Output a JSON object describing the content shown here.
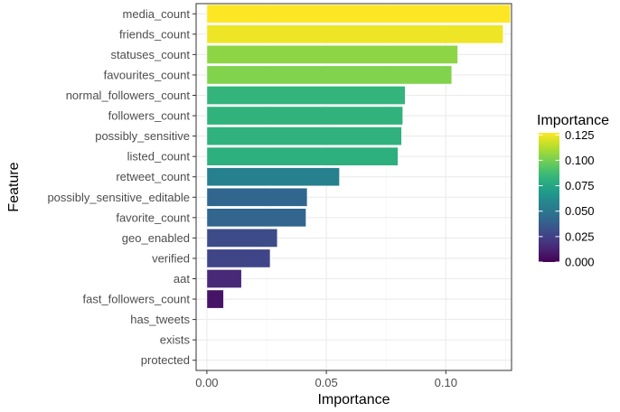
{
  "chart_data": {
    "type": "bar",
    "orientation": "horizontal",
    "xlabel": "Importance",
    "ylabel": "Feature",
    "xlim": [
      -0.0045,
      0.1275
    ],
    "x_ticks": [
      0.0,
      0.05,
      0.1
    ],
    "x_tick_labels": [
      "0.00",
      "0.05",
      "0.10"
    ],
    "grid": true,
    "categories": [
      "media_count",
      "friends_count",
      "statuses_count",
      "favourites_count",
      "normal_followers_count",
      "followers_count",
      "possibly_sensitive",
      "listed_count",
      "retweet_count",
      "possibly_sensitive_editable",
      "favorite_count",
      "geo_enabled",
      "verified",
      "aat",
      "fast_followers_count",
      "has_tweets",
      "exists",
      "protected"
    ],
    "values": [
      0.127,
      0.124,
      0.105,
      0.1025,
      0.083,
      0.082,
      0.0815,
      0.08,
      0.0555,
      0.042,
      0.0415,
      0.0295,
      0.0265,
      0.0145,
      0.007,
      0.0,
      0.0,
      0.0
    ],
    "legend": {
      "title": "Importance",
      "placement": "right",
      "type": "colorbar",
      "colormap": "viridis",
      "range": [
        0.0,
        0.127
      ],
      "ticks": [
        0.0,
        0.025,
        0.05,
        0.075,
        0.1,
        0.125
      ],
      "tick_labels": [
        "0.000",
        "0.025",
        "0.050",
        "0.075",
        "0.100",
        "0.125"
      ]
    }
  },
  "colors": {
    "panel_border": "#333333",
    "grid_major": "#ebebeb",
    "grid_minor": "#f5f5f5",
    "bar_outline": "#ffffff",
    "tick_text": "#4d4d4d",
    "viridis_stops": [
      "#440154",
      "#482878",
      "#3e4989",
      "#31688e",
      "#26828e",
      "#1f9e89",
      "#35b779",
      "#6ece58",
      "#b5de2b",
      "#fde725"
    ]
  }
}
